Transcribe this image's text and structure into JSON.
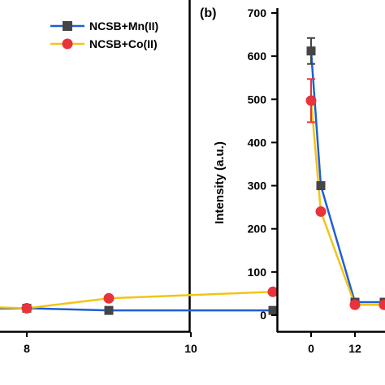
{
  "panel_b_label": "(b)",
  "chart_data": [
    {
      "type": "line",
      "panel": "a",
      "title": "",
      "xlabel": "",
      "ylabel": "",
      "xlim": [
        7.2,
        12
      ],
      "ylim": [
        0,
        700
      ],
      "x_ticks": [
        "8",
        "10",
        "12"
      ],
      "legend": {
        "placement": "top-right"
      },
      "series": [
        {
          "name": "NCSB+Mn(II)",
          "color": "#1f5ed6",
          "marker": "square",
          "points": [
            [
              7,
              14
            ],
            [
              8,
              16
            ],
            [
              9,
              11
            ],
            [
              11,
              11
            ]
          ]
        },
        {
          "name": "NCSB+Co(II)",
          "color": "#f2c416",
          "marker": "circle",
          "points": [
            [
              7,
              22
            ],
            [
              8,
              16
            ],
            [
              9,
              39
            ],
            [
              11,
              54
            ]
          ]
        }
      ]
    },
    {
      "type": "line",
      "panel": "b",
      "title": "",
      "xlabel": "",
      "ylabel": "Intensity (a.u.)",
      "ylim": [
        0,
        700
      ],
      "y_ticks": [
        "0",
        "100",
        "200",
        "300",
        "400",
        "500",
        "600",
        "700"
      ],
      "x_ticks": [
        "0"
      ],
      "series": [
        {
          "name": "NCSB+Mn(II)",
          "color": "#1f5ed6",
          "marker": "square",
          "points": [
            [
              0,
              612,
              30
            ],
            [
              0.2,
              300,
              null
            ],
            [
              0.9,
              30,
              null
            ],
            [
              1.5,
              30,
              null
            ]
          ]
        },
        {
          "name": "NCSB+Co(II)",
          "color": "#f2c416",
          "marker": "circle",
          "points": [
            [
              0,
              497,
              50
            ],
            [
              0.2,
              240,
              null
            ],
            [
              0.9,
              24,
              null
            ],
            [
              1.5,
              24,
              null
            ]
          ]
        }
      ]
    }
  ]
}
